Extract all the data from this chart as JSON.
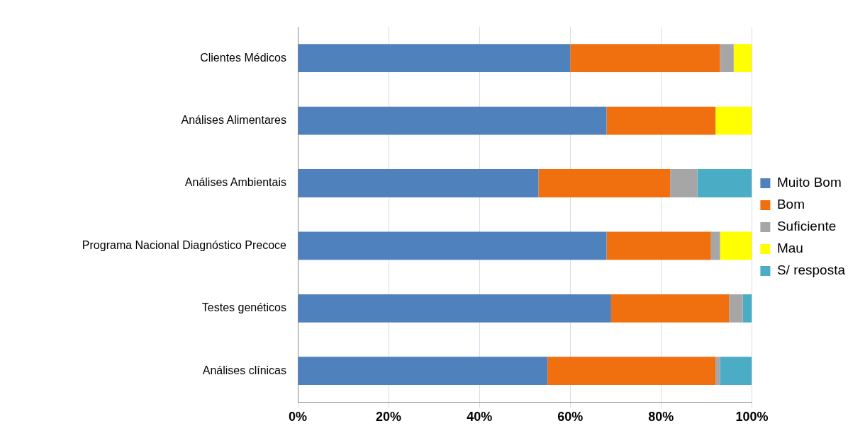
{
  "chart_data": {
    "type": "bar",
    "orientation": "horizontal",
    "stacked": true,
    "categories": [
      "Clientes Médicos",
      "Análises Alimentares",
      "Análises Ambientais",
      "Programa Nacional Diagnóstico Precoce",
      "Testes genéticos",
      "Análises clínicas"
    ],
    "series": [
      {
        "name": "Muito Bom",
        "color": "#4f81bd",
        "values": [
          60,
          68,
          53,
          68,
          69,
          55
        ]
      },
      {
        "name": "Bom",
        "color": "#f07010",
        "values": [
          33,
          24,
          29,
          23,
          26,
          37
        ]
      },
      {
        "name": "Suficiente",
        "color": "#a6a6a6",
        "values": [
          3,
          0,
          6,
          2,
          3,
          1
        ]
      },
      {
        "name": "Mau",
        "color": "#ffff00",
        "values": [
          4,
          8,
          0,
          7,
          0,
          0
        ]
      },
      {
        "name": "S/ resposta",
        "color": "#4bacc6",
        "values": [
          0,
          0,
          12,
          0,
          2,
          7
        ]
      }
    ],
    "xlim": [
      0,
      100
    ],
    "xticks": [
      {
        "value": 0,
        "label": "0%"
      },
      {
        "value": 20,
        "label": "20%"
      },
      {
        "value": 40,
        "label": "40%"
      },
      {
        "value": 60,
        "label": "60%"
      },
      {
        "value": 80,
        "label": "80%"
      },
      {
        "value": 100,
        "label": "100%"
      }
    ],
    "grid": "x",
    "legend": "right"
  }
}
